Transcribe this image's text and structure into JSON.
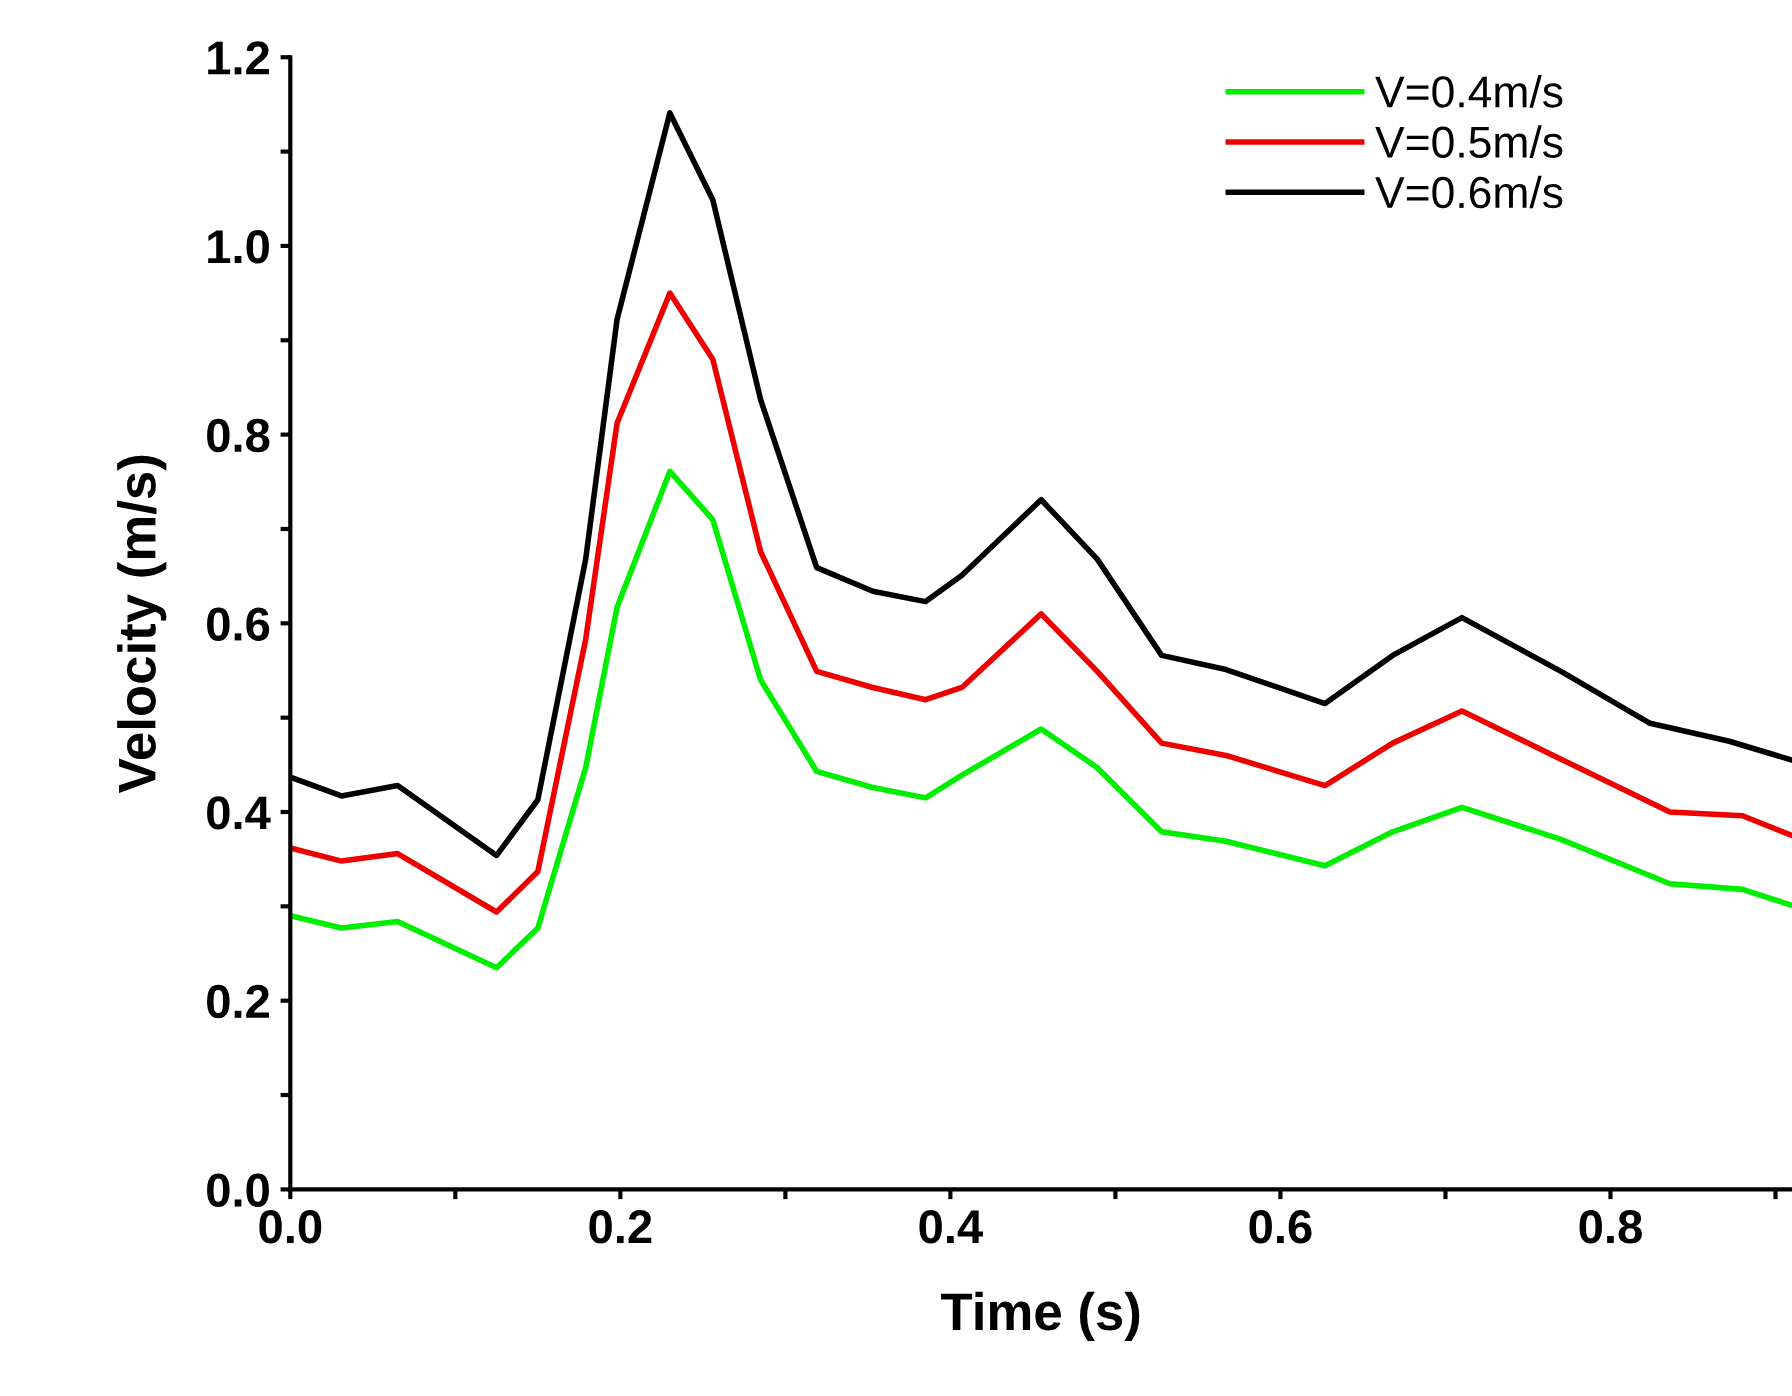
{
  "chart_data": {
    "type": "line",
    "xlabel": "Time (s)",
    "ylabel": "Velocity (m/s)",
    "xlim": [
      0,
      0.91
    ],
    "ylim": [
      0,
      1.2
    ],
    "xticks": [
      {
        "value": 0,
        "label": "0.0"
      },
      {
        "value": 0.1,
        "label": null
      },
      0.2,
      {
        "value": 0.3,
        "label": null
      },
      0.4,
      {
        "value": 0.5,
        "label": null
      },
      0.6,
      {
        "value": 0.7,
        "label": null
      },
      0.8,
      {
        "value": 0.9,
        "label": null
      }
    ],
    "yticks": [
      {
        "value": 0,
        "label": "0.0"
      },
      {
        "value": 0.1,
        "label": null
      },
      0.2,
      {
        "value": 0.3,
        "label": null
      },
      0.4,
      {
        "value": 0.5,
        "label": null
      },
      0.6,
      {
        "value": 0.7,
        "label": null
      },
      0.8,
      {
        "value": 0.9,
        "label": null
      },
      {
        "value": 1,
        "label": "1.0"
      },
      {
        "value": 1.1,
        "label": null
      },
      1.2
    ],
    "legend": "top right",
    "grid": false,
    "marker": "none",
    "line_style": "solid",
    "series": [
      {
        "name": "V=0.4m/s",
        "color": "#00ee00",
        "x": [
          0,
          0.031,
          0.065,
          0.125,
          0.15,
          0.179,
          0.198,
          0.23,
          0.256,
          0.285,
          0.319,
          0.353,
          0.385,
          0.407,
          0.455,
          0.489,
          0.528,
          0.567,
          0.627,
          0.668,
          0.71,
          0.77,
          0.836,
          0.88,
          0.91
        ],
        "values": [
          0.29,
          0.277,
          0.284,
          0.235,
          0.277,
          0.447,
          0.617,
          0.761,
          0.71,
          0.54,
          0.443,
          0.426,
          0.415,
          0.439,
          0.488,
          0.447,
          0.379,
          0.369,
          0.343,
          0.379,
          0.405,
          0.371,
          0.324,
          0.318,
          0.301
        ]
      },
      {
        "name": "V=0.5m/s",
        "color": "#ee0000",
        "x": [
          0,
          0.031,
          0.065,
          0.125,
          0.15,
          0.179,
          0.198,
          0.23,
          0.256,
          0.285,
          0.319,
          0.353,
          0.385,
          0.407,
          0.455,
          0.489,
          0.528,
          0.567,
          0.627,
          0.668,
          0.71,
          0.77,
          0.836,
          0.88,
          0.91
        ],
        "values": [
          0.362,
          0.348,
          0.356,
          0.294,
          0.337,
          0.583,
          0.812,
          0.95,
          0.88,
          0.676,
          0.549,
          0.532,
          0.519,
          0.532,
          0.61,
          0.549,
          0.473,
          0.46,
          0.428,
          0.473,
          0.507,
          0.456,
          0.4,
          0.396,
          0.375
        ]
      },
      {
        "name": "V=0.6m/s",
        "color": "#000000",
        "x": [
          0,
          0.031,
          0.065,
          0.125,
          0.15,
          0.179,
          0.198,
          0.23,
          0.256,
          0.285,
          0.319,
          0.353,
          0.385,
          0.407,
          0.455,
          0.489,
          0.528,
          0.567,
          0.627,
          0.668,
          0.71,
          0.77,
          0.824,
          0.872,
          0.91
        ],
        "values": [
          0.437,
          0.417,
          0.428,
          0.354,
          0.413,
          0.668,
          0.922,
          1.141,
          1.049,
          0.837,
          0.659,
          0.634,
          0.623,
          0.651,
          0.731,
          0.668,
          0.566,
          0.551,
          0.515,
          0.566,
          0.606,
          0.549,
          0.494,
          0.475,
          0.455
        ]
      }
    ]
  }
}
